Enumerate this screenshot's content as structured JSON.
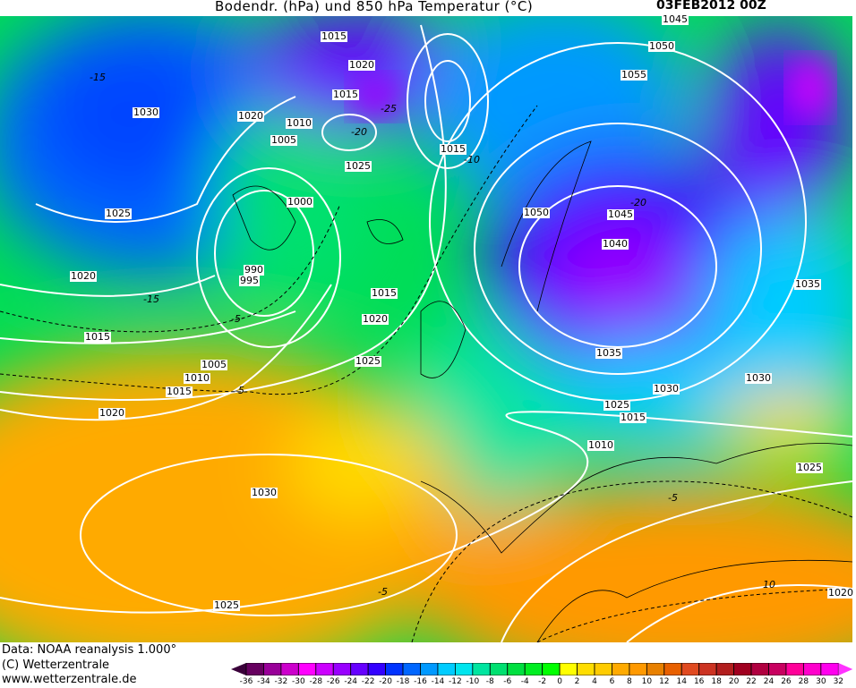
{
  "title": "Bodendr. (hPa) und 850 hPa Temperatur (°C)",
  "date": "03FEB2012 00Z",
  "footer": {
    "data": "Data: NOAA reanalysis 1.000°",
    "copyright": "(C) Wetterzentrale",
    "url": "www.wetterzentrale.de"
  },
  "colorbar": {
    "ticks": [
      "-36",
      "-34",
      "-32",
      "-30",
      "-28",
      "-26",
      "-24",
      "-22",
      "-20",
      "-18",
      "-16",
      "-14",
      "-12",
      "-10",
      "-8",
      "-6",
      "-4",
      "-2",
      "0",
      "2",
      "4",
      "6",
      "8",
      "10",
      "12",
      "14",
      "16",
      "18",
      "20",
      "22",
      "24",
      "26",
      "28",
      "30",
      "32"
    ],
    "below_color": "#3a003a",
    "above_color": "#ff33ff",
    "colors": [
      "#66005f",
      "#990099",
      "#cc00cc",
      "#ff00ff",
      "#cc00ff",
      "#9900ff",
      "#6600ff",
      "#3300ff",
      "#0033ff",
      "#0066ff",
      "#0099ff",
      "#00ccff",
      "#00e5ee",
      "#00e5a0",
      "#00e070",
      "#00e040",
      "#00ee22",
      "#00ff00",
      "#ffff00",
      "#ffdd00",
      "#ffcc00",
      "#ffaa00",
      "#ff9900",
      "#e88000",
      "#e86000",
      "#e04a20",
      "#cc3322",
      "#b21e1e",
      "#a00020",
      "#b00040",
      "#c80060",
      "#ff0099",
      "#ff00cc",
      "#ff00ee"
    ]
  },
  "pressure_labels": [
    "1015",
    "1020",
    "1015",
    "1010",
    "1005",
    "1025",
    "1000",
    "990",
    "995",
    "1030",
    "1020",
    "1025",
    "1020",
    "1015",
    "1005",
    "1010",
    "1015",
    "1020",
    "1030",
    "1025",
    "1015",
    "1020",
    "1025",
    "1015",
    "1045",
    "1050",
    "1055",
    "1050",
    "1045",
    "1040",
    "1035",
    "1030",
    "1025",
    "1015",
    "1010",
    "1030",
    "1035",
    "1025",
    "1020"
  ],
  "temperature_labels": [
    "-15",
    "-20",
    "-25",
    "-10",
    "-20",
    "-15",
    "-5",
    "-5",
    "-5",
    "-5",
    "10"
  ]
}
